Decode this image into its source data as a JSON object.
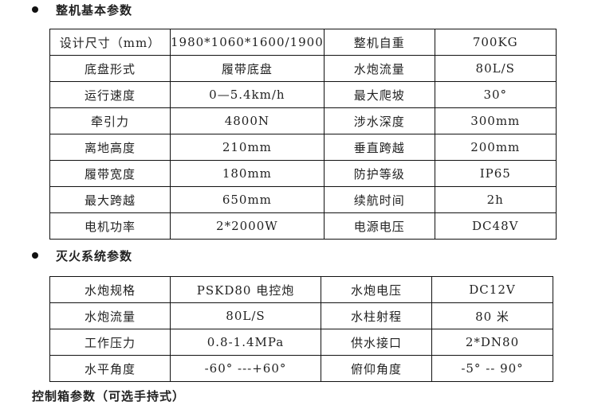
{
  "sections": [
    {
      "title": "整机基本参数",
      "rows": [
        [
          "设计尺寸（mm）",
          "1980*1060*1600/1900",
          "整机自重",
          "700KG"
        ],
        [
          "底盘形式",
          "履带底盘",
          "水炮流量",
          "80L/S"
        ],
        [
          "运行速度",
          "0—5.4km/h",
          "最大爬坡",
          "30°"
        ],
        [
          "牵引力",
          "4800N",
          "涉水深度",
          "300mm"
        ],
        [
          "离地高度",
          "210mm",
          "垂直跨越",
          "200mm"
        ],
        [
          "履带宽度",
          "180mm",
          "防护等级",
          "IP65"
        ],
        [
          "最大跨越",
          "650mm",
          "续航时间",
          "2h"
        ],
        [
          "电机功率",
          "2*2000W",
          "电源电压",
          "DC48V"
        ]
      ]
    },
    {
      "title": "灭火系统参数",
      "rows": [
        [
          "水炮规格",
          "PSKD80 电控炮",
          "水炮电压",
          "DC12V"
        ],
        [
          "水炮流量",
          "80L/S",
          "水柱射程",
          "80 米"
        ],
        [
          "工作压力",
          "0.8-1.4MPa",
          "供水接口",
          "2*DN80"
        ],
        [
          "水平角度",
          "-60° ---+60°",
          "俯仰角度",
          "-5° -- 90°"
        ]
      ]
    },
    {
      "title": "控制箱参数（可选手持式）"
    }
  ]
}
